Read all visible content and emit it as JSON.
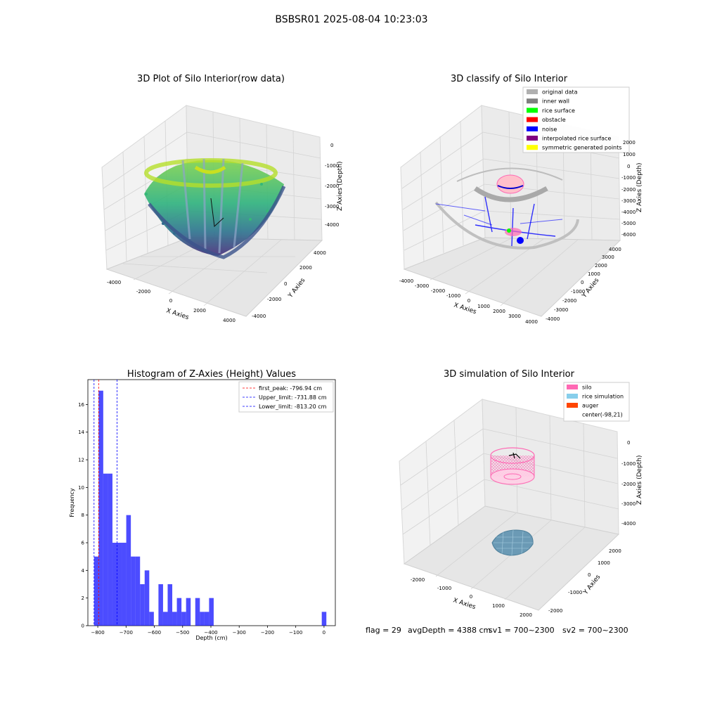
{
  "suptitle": "BSBSR01 2025-08-04 10:23:03",
  "chart_data": [
    {
      "type": "scatter3d",
      "title": "3D Plot of Silo Interior(row data)",
      "xlabel": "X Axies",
      "ylabel": "Y Axies",
      "zlabel": "Z Axies (Depth)",
      "xticks": [
        "-4000",
        "-2000",
        "0",
        "2000",
        "4000"
      ],
      "yticks": [
        "-4000",
        "-2000",
        "0",
        "2000",
        "4000"
      ],
      "zticks": [
        "0",
        "-1000",
        "-2000",
        "-3000",
        "-4000"
      ],
      "colormap": "viridis"
    },
    {
      "type": "scatter3d",
      "title": "3D classify of Silo Interior",
      "xlabel": "X Axies",
      "ylabel": "Y Axies",
      "zlabel": "Z Axies (Depth)",
      "xticks": [
        "-4000",
        "-3000",
        "-2000",
        "-1000",
        "0",
        "1000",
        "2000",
        "3000",
        "4000"
      ],
      "yticks": [
        "-4000",
        "-3000",
        "-2000",
        "-1000",
        "0",
        "1000",
        "2000",
        "3000",
        "4000"
      ],
      "zticks": [
        "2000",
        "1000",
        "0",
        "-1000",
        "-2000",
        "-3000",
        "-4000",
        "-5000",
        "-6000"
      ],
      "legend": [
        {
          "label": "original data",
          "color": "#b0b0b0"
        },
        {
          "label": "inner wall",
          "color": "#808080"
        },
        {
          "label": "rice surface",
          "color": "#00ff00"
        },
        {
          "label": "obstacle",
          "color": "#ff0000"
        },
        {
          "label": "noise",
          "color": "#0000ff"
        },
        {
          "label": "interpolated rice surface",
          "color": "#800080"
        },
        {
          "label": "symmetric generated points",
          "color": "#ffff00"
        }
      ]
    },
    {
      "type": "bar",
      "title": "Histogram of Z-Axies (Height) Values",
      "xlabel": "Depth (cm)",
      "ylabel": "Frequency",
      "xlim": [
        -835,
        40
      ],
      "ylim": [
        0,
        17.8
      ],
      "xticks": [
        -800,
        -700,
        -600,
        -500,
        -400,
        -300,
        -200,
        -100,
        0
      ],
      "yticks": [
        0,
        2,
        4,
        6,
        8,
        10,
        12,
        14,
        16
      ],
      "bar_color": "#0000ff",
      "bin_width": 16.27,
      "bins": [
        {
          "x": -813.2,
          "count": 5
        },
        {
          "x": -796.93,
          "count": 17
        },
        {
          "x": -780.66,
          "count": 11
        },
        {
          "x": -764.39,
          "count": 11
        },
        {
          "x": -748.12,
          "count": 6
        },
        {
          "x": -731.85,
          "count": 6
        },
        {
          "x": -715.58,
          "count": 6
        },
        {
          "x": -699.31,
          "count": 8
        },
        {
          "x": -683.04,
          "count": 5
        },
        {
          "x": -666.77,
          "count": 5
        },
        {
          "x": -650.5,
          "count": 3
        },
        {
          "x": -634.23,
          "count": 4
        },
        {
          "x": -617.96,
          "count": 1
        },
        {
          "x": -601.69,
          "count": 0
        },
        {
          "x": -585.42,
          "count": 3
        },
        {
          "x": -569.15,
          "count": 1
        },
        {
          "x": -552.88,
          "count": 3
        },
        {
          "x": -536.61,
          "count": 1
        },
        {
          "x": -520.34,
          "count": 2
        },
        {
          "x": -504.07,
          "count": 1
        },
        {
          "x": -487.8,
          "count": 2
        },
        {
          "x": -471.53,
          "count": 0
        },
        {
          "x": -455.26,
          "count": 2
        },
        {
          "x": -438.99,
          "count": 1
        },
        {
          "x": -422.72,
          "count": 1
        },
        {
          "x": -406.45,
          "count": 2
        },
        {
          "x": -8,
          "count": 1
        }
      ],
      "vlines": [
        {
          "label": "first_peak: -796.94 cm",
          "x": -796.94,
          "color": "#ff0000"
        },
        {
          "label": "Upper_limit: -731.88 cm",
          "x": -731.88,
          "color": "#0000ff"
        },
        {
          "label": "Lower_limit: -813.20 cm",
          "x": -813.2,
          "color": "#0000ff"
        }
      ],
      "legend_position": "top-right"
    },
    {
      "type": "scatter3d",
      "title": "3D simulation of Silo Interior",
      "xlabel": "X Axies",
      "ylabel": "Y Axies",
      "zlabel": "Z Axies (Depth)",
      "xticks": [
        "-2000",
        "-1000",
        "0",
        "1000",
        "2000"
      ],
      "yticks": [
        "-2000",
        "-1000",
        "0",
        "1000",
        "2000"
      ],
      "zticks": [
        "0",
        "-1000",
        "-2000",
        "-3000",
        "-4000"
      ],
      "legend": [
        {
          "label": "silo",
          "color": "#ff69b4"
        },
        {
          "label": "rice simulation",
          "color": "#87ceeb"
        },
        {
          "label": "auger",
          "color": "#ff4500"
        },
        {
          "label": "center(-98,21)",
          "color": ""
        }
      ]
    }
  ],
  "status": {
    "flag": "flag = 29",
    "avg": "avgDepth = 4388 cm",
    "sv1": "sv1 = 700~2300",
    "sv2": "sv2 = 700~2300"
  }
}
